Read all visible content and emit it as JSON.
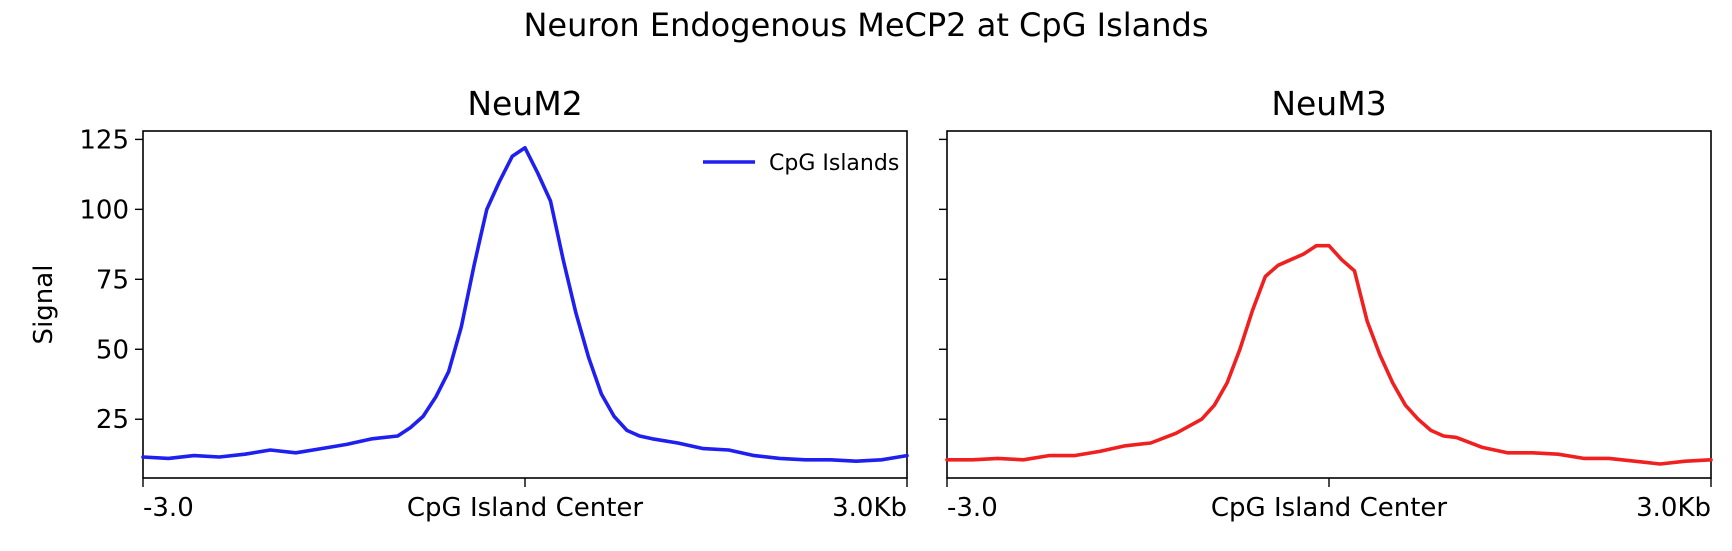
{
  "figure": {
    "suptitle": "Neuron Endogenous MeCP2 at CpG Islands"
  },
  "chart_data": [
    {
      "type": "line",
      "title": "NeuM2",
      "xlabel": "",
      "ylabel": "Signal",
      "x_tick_labels": [
        "-3.0",
        "CpG Island Center",
        "3.0Kb"
      ],
      "xlim": [
        -3.0,
        3.0
      ],
      "ylim": [
        4,
        128
      ],
      "y_ticks": [
        25,
        50,
        75,
        100,
        125
      ],
      "grid": false,
      "legend": {
        "position": "top-right",
        "entries": [
          "CpG Islands"
        ]
      },
      "series": [
        {
          "name": "CpG Islands",
          "color": "#1f1ff0",
          "x": [
            -3.0,
            -2.8,
            -2.6,
            -2.4,
            -2.2,
            -2.0,
            -1.8,
            -1.6,
            -1.4,
            -1.2,
            -1.0,
            -0.9,
            -0.8,
            -0.7,
            -0.6,
            -0.5,
            -0.4,
            -0.35,
            -0.3,
            -0.2,
            -0.1,
            0.0,
            0.1,
            0.2,
            0.3,
            0.4,
            0.5,
            0.6,
            0.7,
            0.8,
            0.9,
            1.0,
            1.2,
            1.4,
            1.6,
            1.8,
            2.0,
            2.2,
            2.4,
            2.6,
            2.8,
            3.0
          ],
          "values": [
            11.5,
            11.0,
            12.0,
            11.5,
            12.5,
            14.0,
            13.0,
            14.5,
            16.0,
            18.0,
            19.0,
            22.0,
            26.0,
            33.0,
            42.0,
            58.0,
            80.0,
            90.0,
            100.0,
            110.0,
            119.0,
            122.0,
            113.0,
            103.0,
            82.0,
            63.0,
            47.0,
            34.0,
            26.0,
            21.0,
            19.0,
            18.0,
            16.5,
            14.5,
            14.0,
            12.0,
            11.0,
            10.5,
            10.5,
            10.0,
            10.5,
            12.0
          ]
        }
      ]
    },
    {
      "type": "line",
      "title": "NeuM3",
      "xlabel": "",
      "ylabel": "",
      "x_tick_labels": [
        "-3.0",
        "CpG Island Center",
        "3.0Kb"
      ],
      "xlim": [
        -3.0,
        3.0
      ],
      "ylim": [
        4,
        128
      ],
      "y_ticks": [
        25,
        50,
        75,
        100,
        125
      ],
      "grid": false,
      "series": [
        {
          "color": "#f02020",
          "x": [
            -3.0,
            -2.8,
            -2.6,
            -2.4,
            -2.2,
            -2.0,
            -1.8,
            -1.6,
            -1.4,
            -1.2,
            -1.0,
            -0.9,
            -0.8,
            -0.7,
            -0.6,
            -0.5,
            -0.4,
            -0.3,
            -0.2,
            -0.1,
            0.0,
            0.1,
            0.2,
            0.3,
            0.4,
            0.5,
            0.6,
            0.7,
            0.8,
            0.9,
            1.0,
            1.2,
            1.4,
            1.6,
            1.8,
            2.0,
            2.2,
            2.4,
            2.6,
            2.8,
            3.0
          ],
          "values": [
            10.5,
            10.5,
            11.0,
            10.5,
            12.0,
            12.0,
            13.5,
            15.5,
            16.5,
            20.0,
            25.0,
            30.0,
            38.0,
            50.0,
            64.0,
            76.0,
            80.0,
            82.0,
            84.0,
            87.0,
            87.0,
            82.0,
            78.0,
            60.0,
            48.0,
            38.0,
            30.0,
            25.0,
            21.0,
            19.0,
            18.5,
            15.0,
            13.0,
            13.0,
            12.5,
            11.0,
            11.0,
            10.0,
            9.0,
            10.0,
            10.5
          ]
        }
      ]
    }
  ]
}
